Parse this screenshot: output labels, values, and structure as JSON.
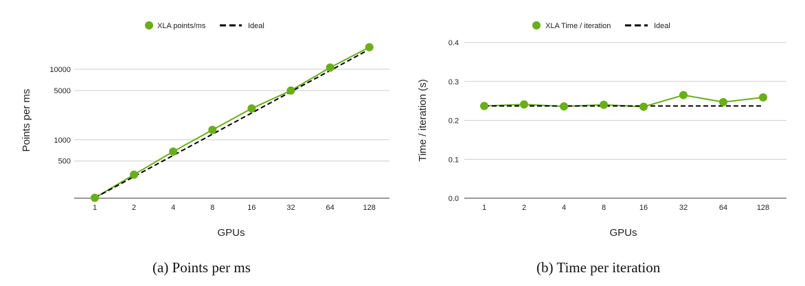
{
  "chart_data": [
    {
      "type": "line",
      "title": "",
      "xlabel": "GPUs",
      "ylabel": "Points per ms",
      "yscale": "log",
      "ylim": [
        148,
        24000
      ],
      "categories": [
        "1",
        "2",
        "4",
        "8",
        "16",
        "32",
        "64",
        "128"
      ],
      "yticks": [
        500,
        1000,
        5000,
        10000
      ],
      "ytick_labels": [
        "500",
        "1000",
        "5000",
        "10000"
      ],
      "grid": true,
      "legend_position": "top-center",
      "series": [
        {
          "name": "XLA points/ms",
          "style": "solid",
          "marker": "circle",
          "color": "#6aae1a",
          "values": [
            150,
            320,
            680,
            1380,
            2780,
            5000,
            10600,
            20600
          ]
        },
        {
          "name": "Ideal",
          "style": "dashed",
          "marker": "none",
          "color": "#000000",
          "values": [
            150,
            300,
            600,
            1200,
            2400,
            4800,
            9600,
            19200
          ]
        }
      ],
      "caption": "(a) Points per ms"
    },
    {
      "type": "line",
      "title": "",
      "xlabel": "GPUs",
      "ylabel": "Time / iteration (s)",
      "ylim": [
        0,
        0.4
      ],
      "categories": [
        "1",
        "2",
        "4",
        "8",
        "16",
        "32",
        "64",
        "128"
      ],
      "yticks": [
        0,
        0.1,
        0.2,
        0.3,
        0.4
      ],
      "ytick_labels": [
        "0.0",
        "0.1",
        "0.2",
        "0.3",
        "0.4"
      ],
      "grid": true,
      "legend_position": "top-center",
      "series": [
        {
          "name": "XLA Time / iteration",
          "style": "solid",
          "marker": "circle",
          "color": "#6aae1a",
          "values": [
            0.237,
            0.241,
            0.236,
            0.24,
            0.235,
            0.265,
            0.247,
            0.259
          ]
        },
        {
          "name": "Ideal",
          "style": "dashed",
          "marker": "none",
          "color": "#000000",
          "values": [
            0.237,
            0.237,
            0.237,
            0.237,
            0.237,
            0.237,
            0.237,
            0.237
          ]
        }
      ],
      "caption": "(b) Time per iteration"
    }
  ]
}
